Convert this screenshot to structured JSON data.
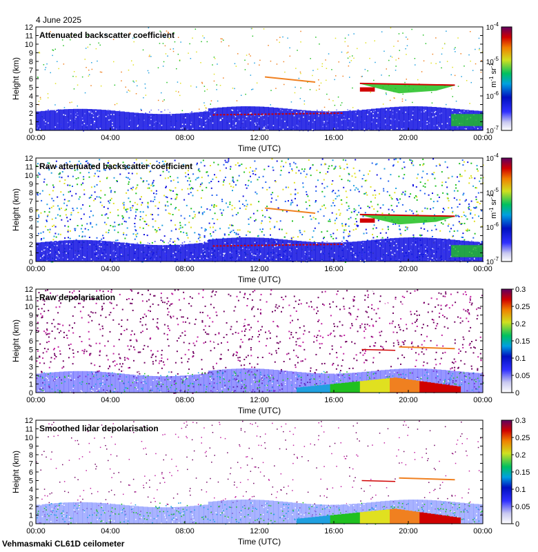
{
  "header": {
    "date": "4 June 2025"
  },
  "footer": {
    "site": "Vehmasmaki CL61D ceilometer"
  },
  "colors": {
    "low_blue": "#1010e0",
    "white": "#ffffff",
    "green": "#20c020",
    "yellow": "#e0e020",
    "orange": "#f08020",
    "red": "#d00000",
    "purple": "#700060",
    "pink": "#c020a0"
  },
  "chart_data": [
    {
      "type": "heatmap",
      "title": "Attenuated backscatter coefficient",
      "xlabel": "Time (UTC)",
      "ylabel": "Height (km)",
      "x_ticks": [
        "00:00",
        "04:00",
        "08:00",
        "12:00",
        "16:00",
        "20:00",
        "00:00"
      ],
      "xlim_hours": [
        0,
        24
      ],
      "ylim": [
        0,
        12
      ],
      "y_ticks": [
        0,
        1,
        2,
        3,
        4,
        5,
        6,
        7,
        8,
        9,
        10,
        11,
        12
      ],
      "colorbar": {
        "scale": "log",
        "range": [
          1e-07,
          0.0001
        ],
        "unit": "m-1 sr-1",
        "tick_base": [
          "10",
          "10",
          "10",
          "10"
        ],
        "tick_exp": [
          "-4",
          "-5",
          "-6",
          "-7"
        ]
      },
      "noise": "low",
      "features": [
        {
          "name": "boundary layer",
          "from_h": 0,
          "to_h": 24,
          "top_km": 2.8
        },
        {
          "name": "cloud base",
          "from_h": 9.5,
          "to_h": 16.5,
          "height_km": 1.8
        },
        {
          "name": "elevated layer",
          "from_h": 12.3,
          "to_h": 16,
          "height_km": 6.0
        },
        {
          "name": "cloud layer",
          "from_h": 17.5,
          "to_h": 22.5,
          "height_km": 5.2
        }
      ]
    },
    {
      "type": "heatmap",
      "title": "Raw attenuated backscatter coefficient",
      "xlabel": "Time (UTC)",
      "ylabel": "Height (km)",
      "x_ticks": [
        "00:00",
        "04:00",
        "08:00",
        "12:00",
        "16:00",
        "20:00",
        "00:00"
      ],
      "xlim_hours": [
        0,
        24
      ],
      "ylim": [
        0,
        12
      ],
      "y_ticks": [
        0,
        1,
        2,
        3,
        4,
        5,
        6,
        7,
        8,
        9,
        10,
        11,
        12
      ],
      "colorbar": {
        "scale": "log",
        "range": [
          1e-07,
          0.0001
        ],
        "unit": "m-1 sr-1",
        "tick_base": [
          "10",
          "10",
          "10",
          "10"
        ],
        "tick_exp": [
          "-4",
          "-5",
          "-6",
          "-7"
        ]
      },
      "noise": "high"
    },
    {
      "type": "heatmap",
      "title": "Raw depolarisation",
      "xlabel": "Time (UTC)",
      "ylabel": "Height (km)",
      "x_ticks": [
        "00:00",
        "04:00",
        "08:00",
        "12:00",
        "16:00",
        "20:00",
        "00:00"
      ],
      "xlim_hours": [
        0,
        24
      ],
      "ylim": [
        0,
        12
      ],
      "y_ticks": [
        0,
        1,
        2,
        3,
        4,
        5,
        6,
        7,
        8,
        9,
        10,
        11,
        12
      ],
      "colorbar": {
        "scale": "linear",
        "range": [
          0,
          0.3
        ],
        "ticks": [
          "0.3",
          "0.25",
          "0.2",
          "0.15",
          "0.1",
          "0.05",
          "0"
        ]
      },
      "noise": "high"
    },
    {
      "type": "heatmap",
      "title": "Smoothed lidar depolarisation",
      "xlabel": "Time (UTC)",
      "ylabel": "Height (km)",
      "x_ticks": [
        "00:00",
        "04:00",
        "08:00",
        "12:00",
        "16:00",
        "20:00",
        "00:00"
      ],
      "xlim_hours": [
        0,
        24
      ],
      "ylim": [
        0,
        12
      ],
      "y_ticks": [
        0,
        1,
        2,
        3,
        4,
        5,
        6,
        7,
        8,
        9,
        10,
        11,
        12
      ],
      "colorbar": {
        "scale": "linear",
        "range": [
          0,
          0.3
        ],
        "ticks": [
          "0.3",
          "0.25",
          "0.2",
          "0.15",
          "0.1",
          "0.05",
          "0"
        ]
      },
      "noise": "low"
    }
  ]
}
